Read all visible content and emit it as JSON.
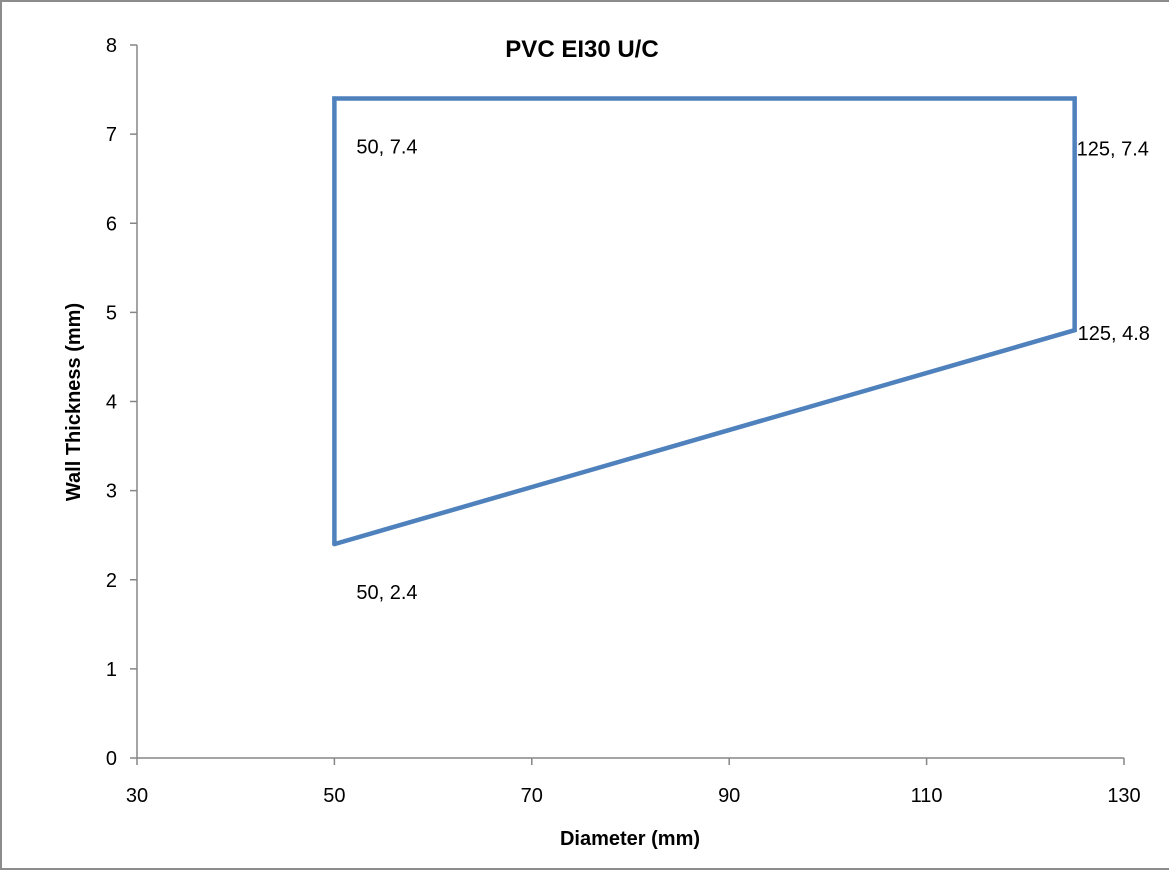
{
  "chart_data": {
    "type": "scatter",
    "title": "PVC EI30 U/C",
    "xlabel": "Diameter (mm)",
    "ylabel": "Wall Thickness (mm)",
    "xlim": [
      30,
      130
    ],
    "ylim": [
      0,
      8
    ],
    "x_ticks": [
      30,
      50,
      70,
      90,
      110,
      130
    ],
    "y_ticks": [
      0,
      1,
      2,
      3,
      4,
      5,
      6,
      7,
      8
    ],
    "grid": false,
    "legend": "none",
    "series": [
      {
        "points": [
          {
            "x": 50,
            "y": 2.4
          },
          {
            "x": 50,
            "y": 7.4
          },
          {
            "x": 125,
            "y": 7.4
          },
          {
            "x": 125,
            "y": 4.8
          },
          {
            "x": 50,
            "y": 2.4
          }
        ],
        "color": "#4f81bd",
        "mode": "lines"
      }
    ],
    "annotations": [
      {
        "text": "50, 7.4",
        "x": 50,
        "y": 7.4,
        "position": "below-right"
      },
      {
        "text": "125, 7.4",
        "x": 125,
        "y": 7.4,
        "position": "below-right"
      },
      {
        "text": "125, 4.8",
        "x": 125,
        "y": 4.8,
        "position": "right"
      },
      {
        "text": "50, 2.4",
        "x": 50,
        "y": 2.4,
        "position": "below-right"
      }
    ]
  }
}
